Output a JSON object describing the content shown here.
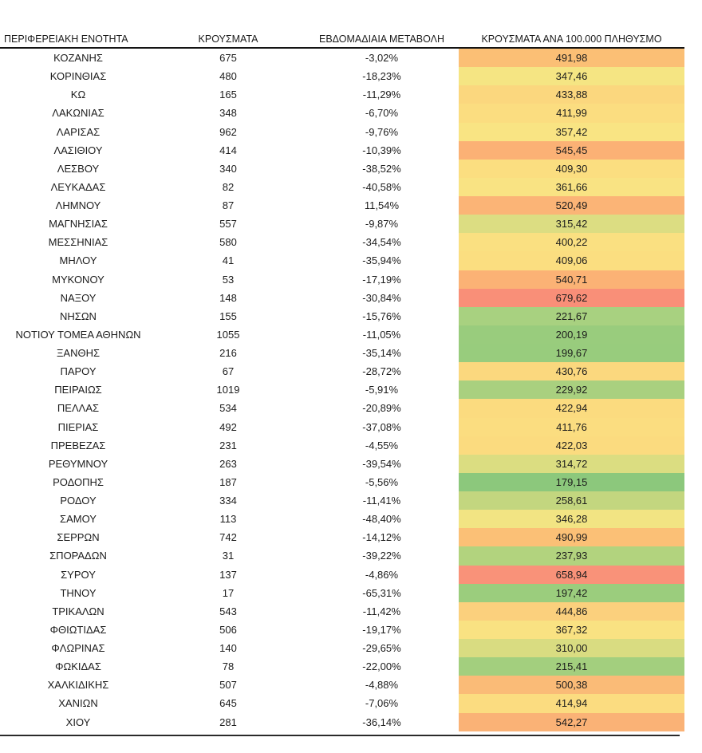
{
  "chart_data": {
    "type": "table",
    "title": "",
    "columns": [
      "ΠΕΡΙΦΕΡΕΙΑΚΗ ΕΝΟΤΗΤΑ",
      "ΚΡΟΥΣΜΑΤΑ",
      "ΕΒΔΟΜΑΔΙΑΙΑ ΜΕΤΑΒΟΛΗ",
      "ΚΡΟΥΣΜΑΤΑ ΑΝΑ 100.000 ΠΛΗΘΥΣΜΟ"
    ],
    "color_scale": {
      "style": "green-yellow-red heatmap applied to last column",
      "low": "#8CC87C",
      "mid": "#FBDF80",
      "high": "#F98F78"
    },
    "rows": [
      {
        "region": "ΚΟΖΑΝΗΣ",
        "cases": "675",
        "weekly_change": "-3,02%",
        "per_100k": "491,98",
        "color": "#FBBF75"
      },
      {
        "region": "ΚΟΡΙΝΘΙΑΣ",
        "cases": "480",
        "weekly_change": "-18,23%",
        "per_100k": "347,46",
        "color": "#F5E583"
      },
      {
        "region": "ΚΩ",
        "cases": "165",
        "weekly_change": "-11,29%",
        "per_100k": "433,88",
        "color": "#FBD77E"
      },
      {
        "region": "ΛΑΚΩΝΙΑΣ",
        "cases": "348",
        "weekly_change": "-6,70%",
        "per_100k": "411,99",
        "color": "#FBDD80"
      },
      {
        "region": "ΛΑΡΙΣΑΣ",
        "cases": "962",
        "weekly_change": "-9,76%",
        "per_100k": "357,42",
        "color": "#F9E483"
      },
      {
        "region": "ΛΑΣΙΘΙΟΥ",
        "cases": "414",
        "weekly_change": "-10,39%",
        "per_100k": "545,45",
        "color": "#FBB175"
      },
      {
        "region": "ΛΕΣΒΟΥ",
        "cases": "340",
        "weekly_change": "-38,52%",
        "per_100k": "409,30",
        "color": "#FBDE80"
      },
      {
        "region": "ΛΕΥΚΑΔΑΣ",
        "cases": "82",
        "weekly_change": "-40,58%",
        "per_100k": "361,66",
        "color": "#F9E383"
      },
      {
        "region": "ΛΗΜΝΟΥ",
        "cases": "87",
        "weekly_change": "11,54%",
        "per_100k": "520,49",
        "color": "#FBB476"
      },
      {
        "region": "ΜΑΓΝΗΣΙΑΣ",
        "cases": "557",
        "weekly_change": "-9,87%",
        "per_100k": "315,42",
        "color": "#DCDD82"
      },
      {
        "region": "ΜΕΣΣΗΝΙΑΣ",
        "cases": "580",
        "weekly_change": "-34,54%",
        "per_100k": "400,22",
        "color": "#FAE081"
      },
      {
        "region": "ΜΗΛΟΥ",
        "cases": "41",
        "weekly_change": "-35,94%",
        "per_100k": "409,06",
        "color": "#FBDE80"
      },
      {
        "region": "ΜΥΚΟΝΟΥ",
        "cases": "53",
        "weekly_change": "-17,19%",
        "per_100k": "540,71",
        "color": "#FBB275"
      },
      {
        "region": "ΝΑΞΟΥ",
        "cases": "148",
        "weekly_change": "-30,84%",
        "per_100k": "679,62",
        "color": "#F98F78"
      },
      {
        "region": "ΝΗΣΩΝ",
        "cases": "155",
        "weekly_change": "-15,76%",
        "per_100k": "221,67",
        "color": "#A8D180"
      },
      {
        "region": "ΝΟΤΙΟΥ ΤΟΜΕΑ ΑΘΗΝΩΝ",
        "cases": "1055",
        "weekly_change": "-11,05%",
        "per_100k": "200,19",
        "color": "#99CC7D"
      },
      {
        "region": "ΞΑΝΘΗΣ",
        "cases": "216",
        "weekly_change": "-35,14%",
        "per_100k": "199,67",
        "color": "#98CC7D"
      },
      {
        "region": "ΠΑΡΟΥ",
        "cases": "67",
        "weekly_change": "-28,72%",
        "per_100k": "430,76",
        "color": "#FBD87E"
      },
      {
        "region": "ΠΕΙΡΑΙΩΣ",
        "cases": "1019",
        "weekly_change": "-5,91%",
        "per_100k": "229,92",
        "color": "#A9D07F"
      },
      {
        "region": "ΠΕΛΛΑΣ",
        "cases": "534",
        "weekly_change": "-20,89%",
        "per_100k": "422,94",
        "color": "#FBDB7F"
      },
      {
        "region": "ΠΙΕΡΙΑΣ",
        "cases": "492",
        "weekly_change": "-37,08%",
        "per_100k": "411,76",
        "color": "#FBDD80"
      },
      {
        "region": "ΠΡΕΒΕΖΑΣ",
        "cases": "231",
        "weekly_change": "-4,55%",
        "per_100k": "422,03",
        "color": "#FBDB7F"
      },
      {
        "region": "ΡΕΘΥΜΝΟΥ",
        "cases": "263",
        "weekly_change": "-39,54%",
        "per_100k": "314,72",
        "color": "#DBDD81"
      },
      {
        "region": "ΡΟΔΟΠΗΣ",
        "cases": "187",
        "weekly_change": "-5,56%",
        "per_100k": "179,15",
        "color": "#8CC87C"
      },
      {
        "region": "ΡΟΔΟΥ",
        "cases": "334",
        "weekly_change": "-11,41%",
        "per_100k": "258,61",
        "color": "#C3D67F"
      },
      {
        "region": "ΣΑΜΟΥ",
        "cases": "113",
        "weekly_change": "-48,40%",
        "per_100k": "346,28",
        "color": "#F2E483"
      },
      {
        "region": "ΣΕΡΡΩΝ",
        "cases": "742",
        "weekly_change": "-14,12%",
        "per_100k": "490,99",
        "color": "#FBC076"
      },
      {
        "region": "ΣΠΟΡΑΔΩΝ",
        "cases": "31",
        "weekly_change": "-39,22%",
        "per_100k": "237,93",
        "color": "#B2D37E"
      },
      {
        "region": "ΣΥΡΟΥ",
        "cases": "137",
        "weekly_change": "-4,86%",
        "per_100k": "658,94",
        "color": "#F99279"
      },
      {
        "region": "ΤΗΝΟΥ",
        "cases": "17",
        "weekly_change": "-65,31%",
        "per_100k": "197,42",
        "color": "#9BCD7D"
      },
      {
        "region": "ΤΡΙΚΑΛΩΝ",
        "cases": "543",
        "weekly_change": "-11,42%",
        "per_100k": "444,86",
        "color": "#FBD07D"
      },
      {
        "region": "ΦΘΙΩΤΙΔΑΣ",
        "cases": "506",
        "weekly_change": "-19,17%",
        "per_100k": "367,32",
        "color": "#F9E282"
      },
      {
        "region": "ΦΛΩΡΙΝΑΣ",
        "cases": "140",
        "weekly_change": "-29,65%",
        "per_100k": "310,00",
        "color": "#D9DC81"
      },
      {
        "region": "ΦΩΚΙΔΑΣ",
        "cases": "78",
        "weekly_change": "-22,00%",
        "per_100k": "215,41",
        "color": "#A3CF7E"
      },
      {
        "region": "ΧΑΛΚΙΔΙΚΗΣ",
        "cases": "507",
        "weekly_change": "-4,88%",
        "per_100k": "500,38",
        "color": "#FABB77"
      },
      {
        "region": "ΧΑΝΙΩΝ",
        "cases": "645",
        "weekly_change": "-7,06%",
        "per_100k": "414,94",
        "color": "#FBDC80"
      },
      {
        "region": "ΧΙΟΥ",
        "cases": "281",
        "weekly_change": "-36,14%",
        "per_100k": "542,27",
        "color": "#FAB276"
      }
    ]
  }
}
